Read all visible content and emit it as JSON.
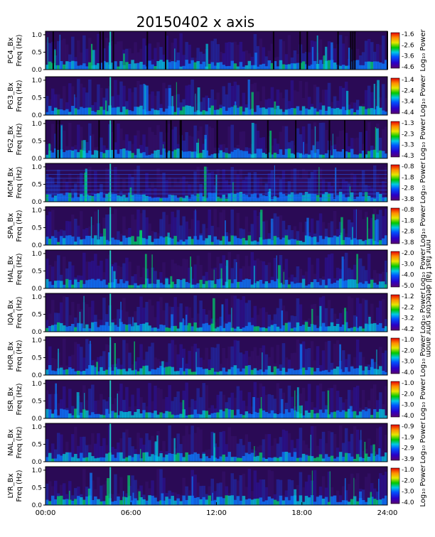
{
  "title": "20150402 x axis",
  "colorbar_label": "Log₁₀ Power",
  "side_note": "nmr fast fall detectors nmr anom",
  "x_axis": {
    "ticks": [
      "00:00",
      "06:00",
      "12:00",
      "18:00",
      "24:00"
    ],
    "range_hours": [
      0,
      24
    ]
  },
  "chart_data": [
    {
      "type": "heatmap",
      "station": "PC4",
      "ylabel_1": "PC4_Bx",
      "ylabel_2": "Freq (Hz)",
      "y_ticks": [
        "1.0",
        "0.5",
        "0.0"
      ],
      "cbar_ticks": [
        "-1.6",
        "-2.6",
        "-3.6",
        "-4.6"
      ],
      "ylim": [
        0,
        1.1
      ],
      "clim": [
        -4.6,
        -1.6
      ],
      "dark_gaps": true
    },
    {
      "type": "heatmap",
      "station": "PG3",
      "ylabel_1": "PG3_Bx",
      "ylabel_2": "Freq (Hz)",
      "y_ticks": [
        "1.0",
        "0.5",
        "0.0"
      ],
      "cbar_ticks": [
        "-1.4",
        "-2.4",
        "-3.4",
        "-4.4"
      ],
      "ylim": [
        0,
        1.1
      ],
      "clim": [
        -4.4,
        -1.4
      ]
    },
    {
      "type": "heatmap",
      "station": "PG2",
      "ylabel_1": "PG2_Bx",
      "ylabel_2": "Freq (Hz)",
      "y_ticks": [
        "1.0",
        "0.5",
        "0.0"
      ],
      "cbar_ticks": [
        "-1.3",
        "-2.3",
        "-3.3",
        "-4.3"
      ],
      "ylim": [
        0,
        1.1
      ],
      "clim": [
        -4.3,
        -1.3
      ],
      "dark_gaps": true
    },
    {
      "type": "heatmap",
      "station": "MCM",
      "ylabel_1": "MCM_Bx",
      "ylabel_2": "Freq (Hz)",
      "y_ticks": [
        "1.0",
        "0.5",
        "0.0"
      ],
      "cbar_ticks": [
        "-0.8",
        "-1.8",
        "-2.8",
        "-3.8"
      ],
      "ylim": [
        0,
        1.1
      ],
      "clim": [
        -3.8,
        -0.8
      ],
      "harmonic_lines": true
    },
    {
      "type": "heatmap",
      "station": "SPA",
      "ylabel_1": "SPA_Bx",
      "ylabel_2": "Freq (Hz)",
      "y_ticks": [
        "1.0",
        "0.5",
        "0.0"
      ],
      "cbar_ticks": [
        "-0.8",
        "-1.8",
        "-2.8",
        "-3.8"
      ],
      "ylim": [
        0,
        1.1
      ],
      "clim": [
        -3.8,
        -0.8
      ]
    },
    {
      "type": "heatmap",
      "station": "HAL",
      "ylabel_1": "HAL_Bx",
      "ylabel_2": "Freq (Hz)",
      "y_ticks": [
        "1.0",
        "0.5",
        "0.0"
      ],
      "cbar_ticks": [
        "-2.0",
        "-3.0",
        "-4.0",
        "-5.0"
      ],
      "ylim": [
        0,
        1.1
      ],
      "clim": [
        -5.0,
        -2.0
      ]
    },
    {
      "type": "heatmap",
      "station": "IQA",
      "ylabel_1": "IQA_Bx",
      "ylabel_2": "Freq (Hz)",
      "y_ticks": [
        "1.0",
        "0.5",
        "0.0"
      ],
      "cbar_ticks": [
        "-1.2",
        "-2.2",
        "-3.2",
        "-4.2"
      ],
      "ylim": [
        0,
        1.1
      ],
      "clim": [
        -4.2,
        -1.2
      ]
    },
    {
      "type": "heatmap",
      "station": "HOR",
      "ylabel_1": "HOR_Bx",
      "ylabel_2": "Freq (Hz)",
      "y_ticks": [
        "1.0",
        "0.5",
        "0.0"
      ],
      "cbar_ticks": [
        "-1.0",
        "-2.0",
        "-3.0",
        "-4.0"
      ],
      "ylim": [
        0,
        1.1
      ],
      "clim": [
        -4.0,
        -1.0
      ]
    },
    {
      "type": "heatmap",
      "station": "ISR",
      "ylabel_1": "ISR_Bx",
      "ylabel_2": "Freq (Hz)",
      "y_ticks": [
        "1.0",
        "0.5",
        "0.0"
      ],
      "cbar_ticks": [
        "-1.0",
        "-2.0",
        "-3.0",
        "-4.0"
      ],
      "ylim": [
        0,
        1.1
      ],
      "clim": [
        -4.0,
        -1.0
      ]
    },
    {
      "type": "heatmap",
      "station": "NAL",
      "ylabel_1": "NAL_Bx",
      "ylabel_2": "Freq (Hz)",
      "y_ticks": [
        "1.0",
        "0.5",
        "0.0"
      ],
      "cbar_ticks": [
        "-0.9",
        "-1.9",
        "-2.9",
        "-3.9"
      ],
      "ylim": [
        0,
        1.1
      ],
      "clim": [
        -3.9,
        -0.9
      ]
    },
    {
      "type": "heatmap",
      "station": "LYR",
      "ylabel_1": "LYR_Bx",
      "ylabel_2": "Freq (Hz)",
      "y_ticks": [
        "1.0",
        "0.5",
        "0.0"
      ],
      "cbar_ticks": [
        "-1.0",
        "-2.0",
        "-3.0",
        "-4.0"
      ],
      "ylim": [
        0,
        1.1
      ],
      "clim": [
        -4.0,
        -1.0
      ]
    }
  ]
}
